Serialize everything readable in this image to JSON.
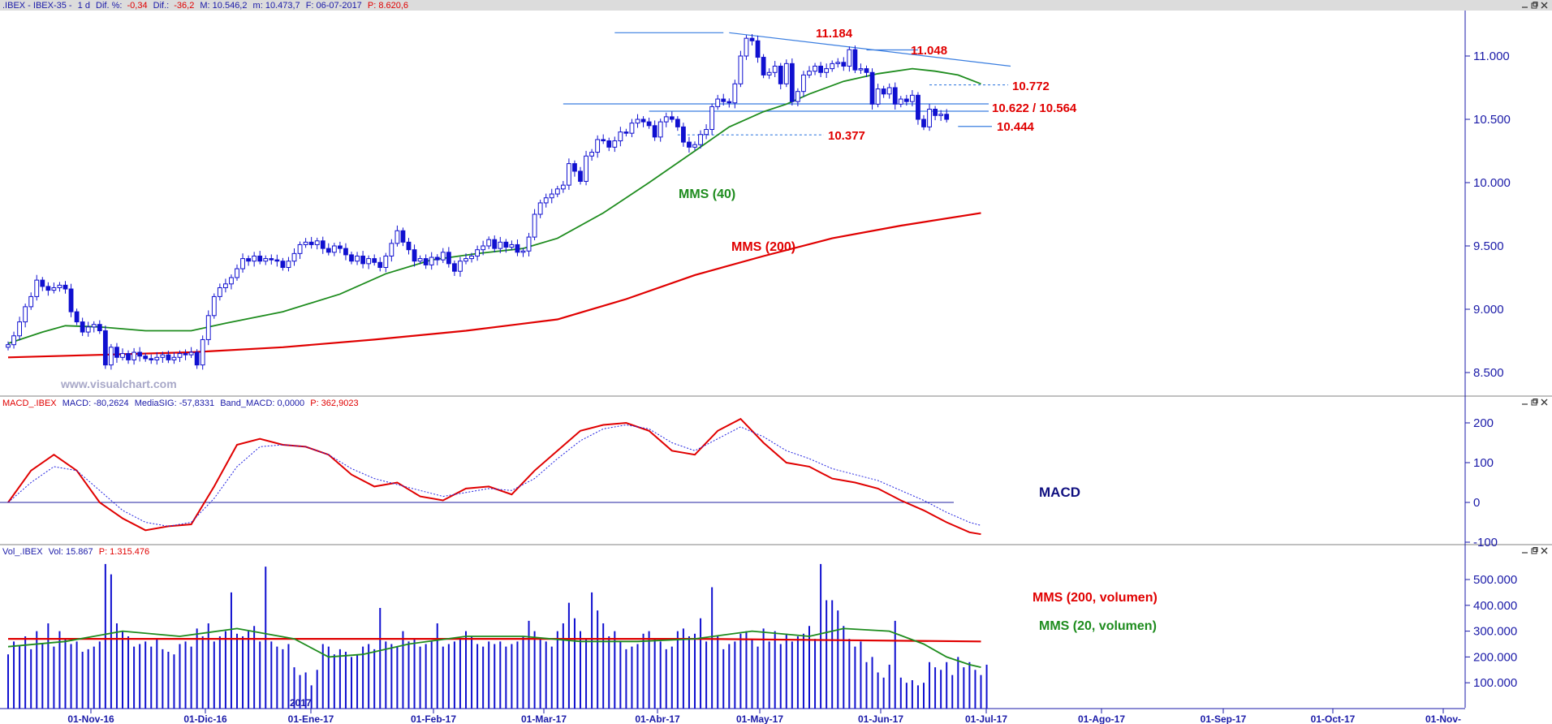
{
  "price_panel": {
    "header": {
      "symbol": ".IBEX - IBEX-35 -",
      "interval": "1 d",
      "dif_pct_label": "Dif. %:",
      "dif_pct_value": "-0,34",
      "dif_label": "Dif.:",
      "dif_value": "-36,2",
      "max": "M: 10.546,2",
      "min": "m: 10.473,7",
      "date": "F: 06-07-2017",
      "last": "P: 8.620,6"
    },
    "watermark": "www.visualchart.com",
    "annotations": {
      "resistance_1": "11.184",
      "resistance_2": "11.048",
      "level_1": "10.772",
      "level_2": "10.622 / 10.564",
      "level_3": "10.444",
      "support_1": "10.377",
      "ma40_label": "MMS (40)",
      "ma200_label": "MMS (200)"
    }
  },
  "macd_panel": {
    "header": {
      "name": "MACD_.IBEX",
      "macd": "MACD: -80,2624",
      "signal": "MediaSIG: -57,8331",
      "band": "Band_MACD: 0,0000",
      "last": "P: 362,9023"
    },
    "label": "MACD"
  },
  "volume_panel": {
    "header": {
      "name": "Vol_.IBEX",
      "vol": "Vol: 15.867",
      "last": "P: 1.315.476"
    },
    "ma200_label": "MMS (200, volumen)",
    "ma20_label": "MMS (20, volumen)"
  },
  "year_marker": "2017",
  "window_icons": [
    "minimize-icon",
    "restore-icon",
    "close-icon"
  ],
  "colors": {
    "candle": "#1010d0",
    "ma40": "#1e8c1e",
    "ma200": "#e00000",
    "macd": "#e00000",
    "signal": "#2020e0",
    "axis": "#1a1aa8"
  },
  "chart_data": [
    {
      "type": "candlestick",
      "title": ".IBEX - IBEX-35 - 1 d",
      "x_ticks": [
        "01-Nov-16",
        "01-Dic-16",
        "01-Ene-17",
        "01-Feb-17",
        "01-Mar-17",
        "01-Abr-17",
        "01-May-17",
        "01-Jun-17",
        "01-Jul-17",
        "01-Ago-17",
        "01-Sep-17",
        "01-Oct-17",
        "01-Nov-"
      ],
      "y_ticks": [
        "8.500",
        "9.000",
        "9.500",
        "10.000",
        "10.500",
        "11.000"
      ],
      "ylim": [
        8350,
        11250
      ],
      "close": [
        8720,
        8790,
        8900,
        9020,
        9100,
        9230,
        9180,
        9150,
        9170,
        9190,
        9160,
        8980,
        8900,
        8820,
        8860,
        8880,
        8830,
        8560,
        8700,
        8620,
        8650,
        8600,
        8660,
        8630,
        8610,
        8600,
        8620,
        8640,
        8600,
        8620,
        8650,
        8640,
        8660,
        8560,
        8760,
        8950,
        9100,
        9170,
        9200,
        9250,
        9320,
        9400,
        9380,
        9420,
        9380,
        9400,
        9390,
        9380,
        9330,
        9380,
        9440,
        9510,
        9530,
        9510,
        9540,
        9480,
        9450,
        9500,
        9480,
        9430,
        9380,
        9420,
        9360,
        9400,
        9370,
        9330,
        9420,
        9520,
        9620,
        9530,
        9470,
        9380,
        9400,
        9350,
        9410,
        9390,
        9450,
        9360,
        9300,
        9380,
        9400,
        9420,
        9470,
        9500,
        9550,
        9480,
        9530,
        9490,
        9510,
        9450,
        9460,
        9570,
        9750,
        9840,
        9880,
        9910,
        9950,
        9980,
        10150,
        10090,
        10010,
        10210,
        10240,
        10340,
        10330,
        10280,
        10330,
        10400,
        10390,
        10470,
        10500,
        10480,
        10450,
        10360,
        10480,
        10520,
        10500,
        10440,
        10320,
        10280,
        10300,
        10380,
        10420,
        10600,
        10660,
        10640,
        10630,
        10780,
        11000,
        11140,
        11120,
        10990,
        10850,
        10870,
        10920,
        10780,
        10940,
        10640,
        10720,
        10850,
        10880,
        10920,
        10870,
        10900,
        10940,
        10950,
        10920,
        11050,
        10890,
        10900,
        10870,
        10620,
        10740,
        10700,
        10750,
        10620,
        10660,
        10640,
        10690,
        10500,
        10440,
        10580,
        10530,
        10540,
        10500
      ],
      "moving_averages": [
        {
          "name": "MMS (40)",
          "points": [
            [
              0,
              8730
            ],
            [
              6,
              8820
            ],
            [
              10,
              8870
            ],
            [
              16,
              8860
            ],
            [
              24,
              8830
            ],
            [
              32,
              8830
            ],
            [
              38,
              8890
            ],
            [
              48,
              8980
            ],
            [
              58,
              9120
            ],
            [
              66,
              9280
            ],
            [
              74,
              9390
            ],
            [
              82,
              9440
            ],
            [
              90,
              9480
            ],
            [
              96,
              9560
            ],
            [
              104,
              9760
            ],
            [
              112,
              10000
            ],
            [
              120,
              10250
            ],
            [
              126,
              10440
            ],
            [
              132,
              10560
            ],
            [
              136,
              10620
            ],
            [
              140,
              10700
            ],
            [
              146,
              10800
            ],
            [
              152,
              10860
            ],
            [
              158,
              10900
            ],
            [
              162,
              10880
            ],
            [
              166,
              10850
            ],
            [
              170,
              10780
            ]
          ]
        },
        {
          "name": "MMS (200)",
          "points": [
            [
              0,
              8620
            ],
            [
              16,
              8640
            ],
            [
              32,
              8660
            ],
            [
              48,
              8700
            ],
            [
              64,
              8760
            ],
            [
              80,
              8830
            ],
            [
              96,
              8920
            ],
            [
              108,
              9080
            ],
            [
              120,
              9270
            ],
            [
              132,
              9420
            ],
            [
              144,
              9560
            ],
            [
              156,
              9660
            ],
            [
              170,
              9760
            ]
          ]
        }
      ],
      "annotations": [
        {
          "text": "11.184",
          "value": 11184
        },
        {
          "text": "11.048",
          "value": 11048
        },
        {
          "text": "10.772",
          "value": 10772
        },
        {
          "text": "10.622 / 10.564",
          "value": 10622
        },
        {
          "text": "10.444",
          "value": 10444
        },
        {
          "text": "10.377",
          "value": 10377
        }
      ]
    },
    {
      "type": "line",
      "title": "MACD",
      "y_ticks": [
        "-100",
        "0",
        "100",
        "200"
      ],
      "ylim": [
        -100,
        215
      ],
      "series": [
        {
          "name": "MACD",
          "points": [
            [
              0,
              0
            ],
            [
              4,
              80
            ],
            [
              8,
              120
            ],
            [
              12,
              80
            ],
            [
              16,
              0
            ],
            [
              20,
              -40
            ],
            [
              24,
              -70
            ],
            [
              28,
              -60
            ],
            [
              32,
              -55
            ],
            [
              36,
              40
            ],
            [
              40,
              145
            ],
            [
              44,
              160
            ],
            [
              48,
              145
            ],
            [
              52,
              140
            ],
            [
              56,
              120
            ],
            [
              60,
              70
            ],
            [
              64,
              40
            ],
            [
              68,
              50
            ],
            [
              72,
              15
            ],
            [
              76,
              5
            ],
            [
              80,
              35
            ],
            [
              84,
              40
            ],
            [
              88,
              20
            ],
            [
              92,
              80
            ],
            [
              96,
              130
            ],
            [
              100,
              180
            ],
            [
              104,
              195
            ],
            [
              108,
              200
            ],
            [
              112,
              180
            ],
            [
              116,
              130
            ],
            [
              120,
              120
            ],
            [
              124,
              180
            ],
            [
              128,
              210
            ],
            [
              132,
              150
            ],
            [
              136,
              100
            ],
            [
              140,
              90
            ],
            [
              144,
              60
            ],
            [
              148,
              50
            ],
            [
              152,
              35
            ],
            [
              156,
              5
            ],
            [
              160,
              -20
            ],
            [
              164,
              -50
            ],
            [
              168,
              -75
            ],
            [
              170,
              -80
            ]
          ]
        },
        {
          "name": "MediaSIG",
          "points": [
            [
              0,
              0
            ],
            [
              4,
              50
            ],
            [
              8,
              90
            ],
            [
              12,
              80
            ],
            [
              16,
              30
            ],
            [
              20,
              -20
            ],
            [
              24,
              -50
            ],
            [
              28,
              -60
            ],
            [
              32,
              -50
            ],
            [
              36,
              10
            ],
            [
              40,
              90
            ],
            [
              44,
              140
            ],
            [
              48,
              145
            ],
            [
              52,
              140
            ],
            [
              56,
              120
            ],
            [
              60,
              85
            ],
            [
              64,
              60
            ],
            [
              68,
              45
            ],
            [
              72,
              30
            ],
            [
              76,
              15
            ],
            [
              80,
              25
            ],
            [
              84,
              35
            ],
            [
              88,
              30
            ],
            [
              92,
              60
            ],
            [
              96,
              110
            ],
            [
              100,
              155
            ],
            [
              104,
              185
            ],
            [
              108,
              195
            ],
            [
              112,
              185
            ],
            [
              116,
              150
            ],
            [
              120,
              130
            ],
            [
              124,
              160
            ],
            [
              128,
              190
            ],
            [
              132,
              165
            ],
            [
              136,
              130
            ],
            [
              140,
              110
            ],
            [
              144,
              85
            ],
            [
              148,
              70
            ],
            [
              152,
              55
            ],
            [
              156,
              30
            ],
            [
              160,
              5
            ],
            [
              164,
              -25
            ],
            [
              168,
              -50
            ],
            [
              170,
              -58
            ]
          ]
        }
      ]
    },
    {
      "type": "bar",
      "title": "Volumen",
      "y_ticks": [
        "100.000",
        "200.000",
        "300.000",
        "400.000",
        "500.000"
      ],
      "ylim": [
        0,
        560000
      ],
      "values": [
        210000,
        260000,
        245000,
        280000,
        230000,
        300000,
        250000,
        330000,
        240000,
        300000,
        270000,
        250000,
        260000,
        220000,
        230000,
        240000,
        260000,
        560000,
        520000,
        330000,
        300000,
        280000,
        240000,
        250000,
        260000,
        240000,
        270000,
        230000,
        220000,
        210000,
        250000,
        260000,
        240000,
        310000,
        280000,
        330000,
        260000,
        280000,
        300000,
        450000,
        290000,
        280000,
        300000,
        320000,
        260000,
        550000,
        260000,
        240000,
        230000,
        250000,
        160000,
        130000,
        140000,
        90000,
        150000,
        250000,
        240000,
        210000,
        230000,
        220000,
        200000,
        210000,
        240000,
        250000,
        230000,
        390000,
        260000,
        250000,
        240000,
        300000,
        260000,
        270000,
        240000,
        250000,
        260000,
        330000,
        240000,
        250000,
        260000,
        270000,
        300000,
        280000,
        250000,
        240000,
        260000,
        250000,
        260000,
        240000,
        250000,
        260000,
        280000,
        340000,
        300000,
        270000,
        260000,
        240000,
        300000,
        330000,
        410000,
        350000,
        300000,
        270000,
        450000,
        380000,
        330000,
        280000,
        300000,
        260000,
        230000,
        240000,
        250000,
        290000,
        300000,
        270000,
        260000,
        230000,
        240000,
        300000,
        310000,
        280000,
        290000,
        350000,
        260000,
        470000,
        280000,
        230000,
        250000,
        260000,
        290000,
        300000,
        270000,
        240000,
        310000,
        260000,
        300000,
        250000,
        290000,
        260000,
        280000,
        290000,
        320000,
        270000,
        560000,
        420000,
        420000,
        380000,
        320000,
        270000,
        240000,
        260000,
        180000,
        200000,
        140000,
        120000,
        170000,
        340000,
        120000,
        100000,
        110000,
        90000,
        100000,
        180000,
        160000,
        150000,
        180000,
        130000,
        200000,
        160000,
        180000,
        150000,
        130000,
        170000
      ],
      "moving_averages": [
        {
          "name": "MMS (200, volumen)",
          "points": [
            [
              0,
              270000
            ],
            [
              60,
              270000
            ],
            [
              120,
              270000
            ],
            [
              170,
              260000
            ]
          ]
        },
        {
          "name": "MMS (20, volumen)",
          "points": [
            [
              0,
              240000
            ],
            [
              10,
              260000
            ],
            [
              20,
              300000
            ],
            [
              30,
              280000
            ],
            [
              40,
              310000
            ],
            [
              50,
              270000
            ],
            [
              56,
              200000
            ],
            [
              62,
              210000
            ],
            [
              70,
              250000
            ],
            [
              80,
              280000
            ],
            [
              90,
              280000
            ],
            [
              100,
              260000
            ],
            [
              110,
              260000
            ],
            [
              120,
              270000
            ],
            [
              130,
              300000
            ],
            [
              140,
              280000
            ],
            [
              146,
              310000
            ],
            [
              154,
              300000
            ],
            [
              160,
              250000
            ],
            [
              164,
              200000
            ],
            [
              168,
              170000
            ],
            [
              170,
              160000
            ]
          ]
        }
      ]
    }
  ]
}
